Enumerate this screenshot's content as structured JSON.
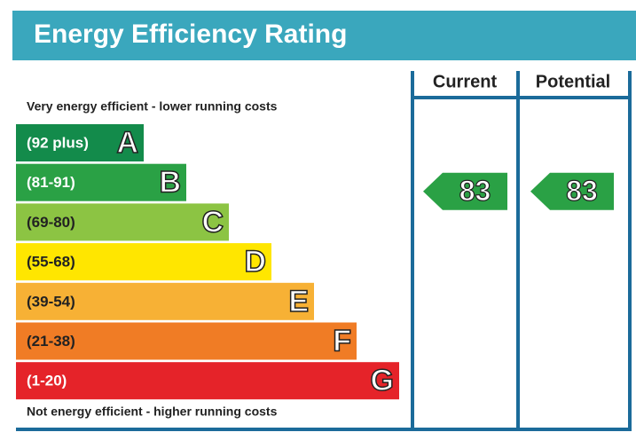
{
  "title": "Energy Efficiency Rating",
  "columns": [
    "Current",
    "Potential"
  ],
  "top_note": "Very energy efficient - lower running costs",
  "bottom_note": "Not energy efficient - higher running costs",
  "bands": [
    {
      "range": "(92 plus)",
      "letter": "A",
      "color": "#138b4b",
      "label_color": "#ffffff"
    },
    {
      "range": "(81-91)",
      "letter": "B",
      "color": "#2aa145",
      "label_color": "#ffffff"
    },
    {
      "range": "(69-80)",
      "letter": "C",
      "color": "#8cc443",
      "label_color": "#222222"
    },
    {
      "range": "(55-68)",
      "letter": "D",
      "color": "#ffe600",
      "label_color": "#222222"
    },
    {
      "range": "(39-54)",
      "letter": "E",
      "color": "#f7b135",
      "label_color": "#222222"
    },
    {
      "range": "(21-38)",
      "letter": "F",
      "color": "#f07c25",
      "label_color": "#222222"
    },
    {
      "range": "(1-20)",
      "letter": "G",
      "color": "#e52329",
      "label_color": "#ffffff"
    }
  ],
  "ratings": [
    {
      "value": 83,
      "band": 1,
      "color": "#2aa145"
    },
    {
      "value": 83,
      "band": 1,
      "color": "#2aa145"
    }
  ]
}
